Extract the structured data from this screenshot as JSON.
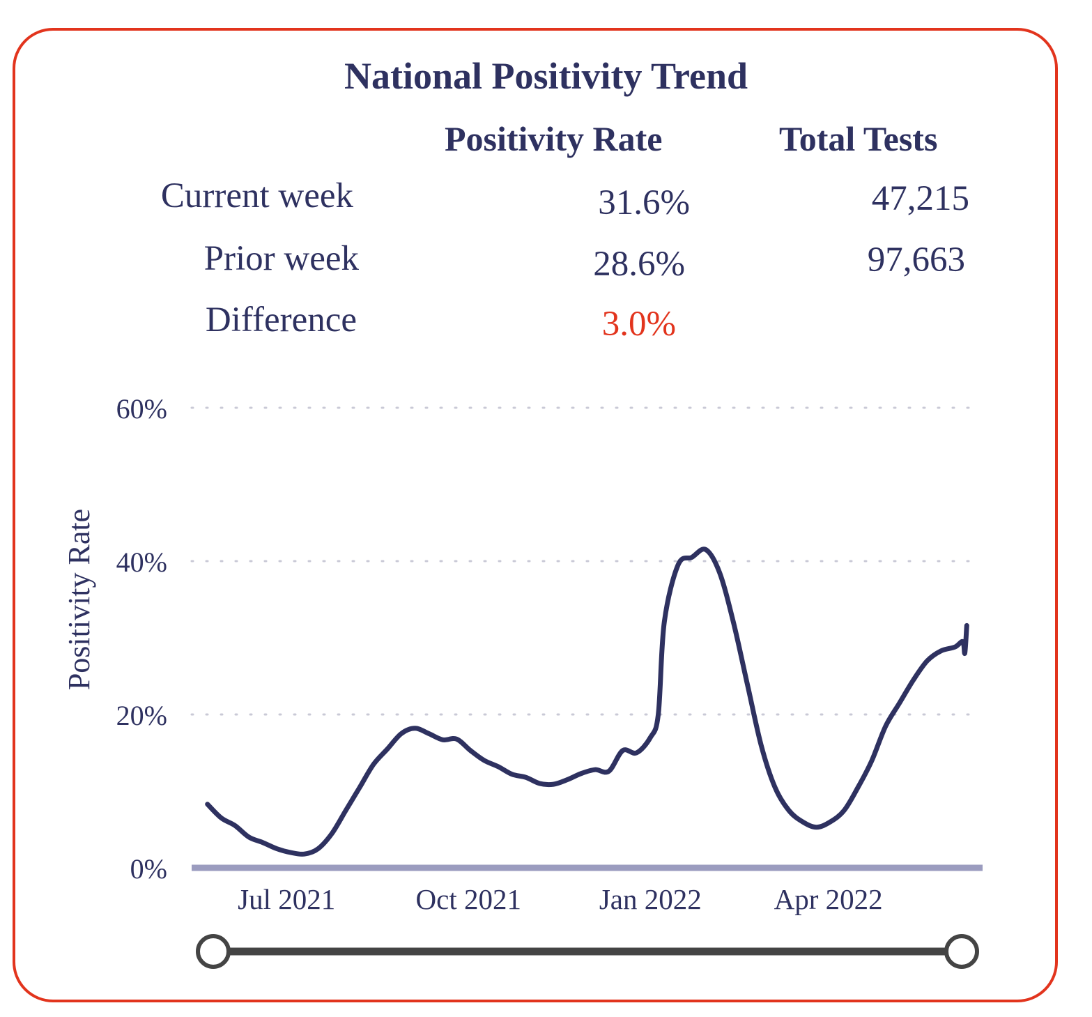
{
  "title": "National Positivity Trend",
  "summary": {
    "columns": [
      "Positivity Rate",
      "Total Tests"
    ],
    "rows": [
      {
        "label": "Current week",
        "rate": "31.6%",
        "tests": "47,215"
      },
      {
        "label": "Prior week",
        "rate": "28.6%",
        "tests": "97,663"
      },
      {
        "label": "Difference",
        "rate": "3.0%",
        "tests": ""
      }
    ]
  },
  "colors": {
    "accent": "#e2341d",
    "line": "#2e3160",
    "axis": "#9b9cbf",
    "slider": "#444444"
  },
  "chart_data": {
    "type": "line",
    "ylabel": "Positivity Rate",
    "xlabel": "",
    "ylim": [
      0,
      60
    ],
    "yticks": [
      {
        "v": 0,
        "label": "0%"
      },
      {
        "v": 20,
        "label": "20%"
      },
      {
        "v": 40,
        "label": "40%"
      },
      {
        "v": 60,
        "label": "60%"
      }
    ],
    "xlim": [
      "2021-05-14",
      "2022-06-18"
    ],
    "xticks": [
      {
        "date": "2021-07-01",
        "label": "Jul 2021"
      },
      {
        "date": "2021-10-01",
        "label": "Oct 2021"
      },
      {
        "date": "2022-01-01",
        "label": "Jan 2022"
      },
      {
        "date": "2022-04-01",
        "label": "Apr 2022"
      }
    ],
    "grid": "horizontal-dotted",
    "series": [
      {
        "values": [
          [
            "2021-05-22",
            8.3
          ],
          [
            "2021-05-29",
            6.5
          ],
          [
            "2021-06-05",
            5.5
          ],
          [
            "2021-06-12",
            4.0
          ],
          [
            "2021-06-19",
            3.3
          ],
          [
            "2021-06-26",
            2.5
          ],
          [
            "2021-07-03",
            2.0
          ],
          [
            "2021-07-10",
            1.8
          ],
          [
            "2021-07-17",
            2.5
          ],
          [
            "2021-07-24",
            4.5
          ],
          [
            "2021-07-31",
            7.5
          ],
          [
            "2021-08-07",
            10.5
          ],
          [
            "2021-08-14",
            13.5
          ],
          [
            "2021-08-21",
            15.5
          ],
          [
            "2021-08-28",
            17.5
          ],
          [
            "2021-09-04",
            18.2
          ],
          [
            "2021-09-11",
            17.5
          ],
          [
            "2021-09-18",
            16.7
          ],
          [
            "2021-09-25",
            16.8
          ],
          [
            "2021-10-02",
            15.3
          ],
          [
            "2021-10-09",
            14.0
          ],
          [
            "2021-10-16",
            13.2
          ],
          [
            "2021-10-23",
            12.2
          ],
          [
            "2021-10-30",
            11.8
          ],
          [
            "2021-11-06",
            11.0
          ],
          [
            "2021-11-13",
            10.9
          ],
          [
            "2021-11-20",
            11.5
          ],
          [
            "2021-11-27",
            12.3
          ],
          [
            "2021-12-04",
            12.8
          ],
          [
            "2021-12-11",
            12.6
          ],
          [
            "2021-12-18",
            15.3
          ],
          [
            "2021-12-25",
            15.0
          ],
          [
            "2022-01-01",
            17.0
          ],
          [
            "2022-01-05",
            20.0
          ],
          [
            "2022-01-08",
            32.0
          ],
          [
            "2022-01-15",
            39.5
          ],
          [
            "2022-01-22",
            40.5
          ],
          [
            "2022-01-29",
            41.5
          ],
          [
            "2022-02-05",
            38.5
          ],
          [
            "2022-02-12",
            32.0
          ],
          [
            "2022-02-19",
            24.0
          ],
          [
            "2022-02-26",
            16.0
          ],
          [
            "2022-03-05",
            10.5
          ],
          [
            "2022-03-12",
            7.5
          ],
          [
            "2022-03-19",
            6.0
          ],
          [
            "2022-03-26",
            5.3
          ],
          [
            "2022-04-02",
            6.0
          ],
          [
            "2022-04-09",
            7.5
          ],
          [
            "2022-04-16",
            10.5
          ],
          [
            "2022-04-23",
            14.0
          ],
          [
            "2022-04-30",
            18.5
          ],
          [
            "2022-05-07",
            21.5
          ],
          [
            "2022-05-14",
            24.5
          ],
          [
            "2022-05-21",
            27.0
          ],
          [
            "2022-05-28",
            28.3
          ],
          [
            "2022-06-04",
            28.8
          ],
          [
            "2022-06-08",
            29.5
          ],
          [
            "2022-06-09",
            28.0
          ],
          [
            "2022-06-10",
            31.6
          ]
        ]
      }
    ]
  }
}
